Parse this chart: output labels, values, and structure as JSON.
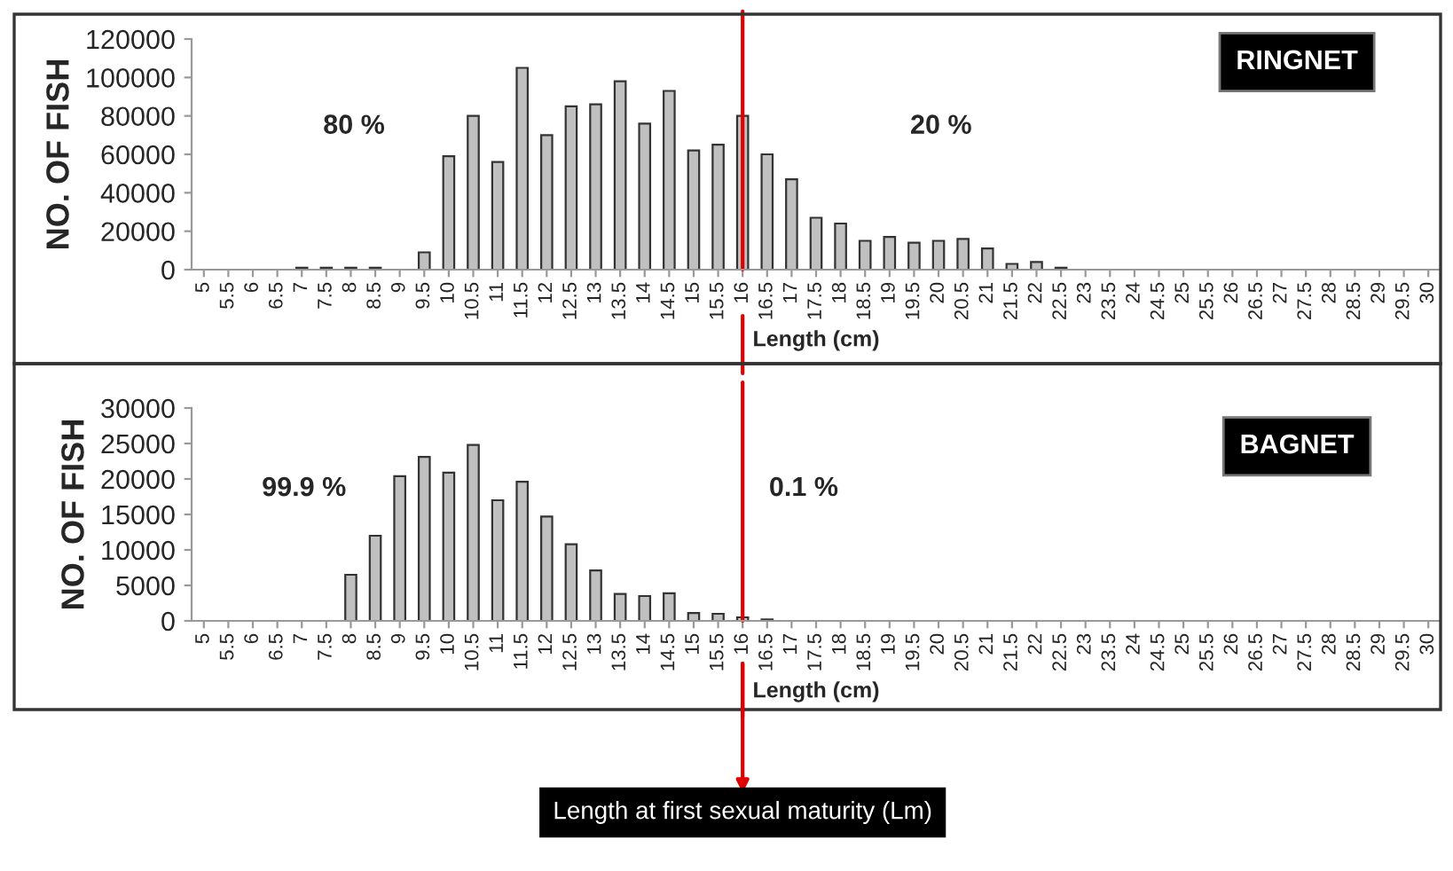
{
  "chart_data": [
    {
      "type": "bar",
      "xlabel": "Length (cm)",
      "ylabel": "NO. OF FISH",
      "categories": [
        "5",
        "5.5",
        "6",
        "6.5",
        "7",
        "7.5",
        "8",
        "8.5",
        "9",
        "9.5",
        "10",
        "10.5",
        "11",
        "11.5",
        "12",
        "12.5",
        "13",
        "13.5",
        "14",
        "14.5",
        "15",
        "15.5",
        "16",
        "16.5",
        "17",
        "17.5",
        "18",
        "18.5",
        "19",
        "19.5",
        "20",
        "20.5",
        "21",
        "21.5",
        "22",
        "22.5",
        "23",
        "23.5",
        "24",
        "24.5",
        "25",
        "25.5",
        "26",
        "26.5",
        "27",
        "27.5",
        "28",
        "28.5",
        "29",
        "29.5",
        "30"
      ],
      "values": [
        0,
        0,
        0,
        0,
        1000,
        1000,
        1000,
        1000,
        0,
        9000,
        59000,
        80000,
        56000,
        105000,
        70000,
        85000,
        86000,
        98000,
        76000,
        93000,
        62000,
        65000,
        80000,
        60000,
        47000,
        27000,
        24000,
        15000,
        17000,
        14000,
        15000,
        16000,
        11000,
        3000,
        4000,
        1000,
        0,
        0,
        0,
        0,
        0,
        0,
        0,
        0,
        0,
        0,
        0,
        0,
        0,
        0,
        0
      ],
      "color": "#c0c0c0",
      "ylim": [
        0,
        120000
      ],
      "yticks": [
        0,
        20000,
        40000,
        60000,
        80000,
        100000,
        120000
      ],
      "grid": false,
      "annotations": [
        "80 %",
        "20 %",
        "RINGNET"
      ],
      "ref_lines": [
        {
          "axis": "x",
          "value": "16",
          "color": "#e00000"
        }
      ]
    },
    {
      "type": "bar",
      "xlabel": "Length (cm)",
      "ylabel": "NO. OF FISH",
      "categories": [
        "5",
        "5.5",
        "6",
        "6.5",
        "7",
        "7.5",
        "8",
        "8.5",
        "9",
        "9.5",
        "10",
        "10.5",
        "11",
        "11.5",
        "12",
        "12.5",
        "13",
        "13.5",
        "14",
        "14.5",
        "15",
        "15.5",
        "16",
        "16.5",
        "17",
        "17.5",
        "18",
        "18.5",
        "19",
        "19.5",
        "20",
        "20.5",
        "21",
        "21.5",
        "22",
        "22.5",
        "23",
        "23.5",
        "24",
        "24.5",
        "25",
        "25.5",
        "26",
        "26.5",
        "27",
        "27.5",
        "28",
        "28.5",
        "29",
        "29.5",
        "30"
      ],
      "values": [
        0,
        0,
        0,
        0,
        0,
        0,
        6500,
        12000,
        20400,
        23100,
        20900,
        24800,
        17000,
        19600,
        14700,
        10800,
        7100,
        3800,
        3500,
        3900,
        1100,
        1000,
        500,
        200,
        0,
        0,
        0,
        0,
        0,
        0,
        0,
        0,
        0,
        0,
        0,
        0,
        0,
        0,
        0,
        0,
        0,
        0,
        0,
        0,
        0,
        0,
        0,
        0,
        0,
        0,
        0
      ],
      "color": "#c0c0c0",
      "ylim": [
        0,
        30000
      ],
      "yticks": [
        0,
        5000,
        10000,
        15000,
        20000,
        25000,
        30000
      ],
      "grid": false,
      "annotations": [
        "99.9 %",
        "0.1 %",
        "BAGNET",
        "Length at first sexual maturity (Lm)"
      ],
      "ref_lines": [
        {
          "axis": "x",
          "value": "16",
          "color": "#e00000"
        }
      ]
    }
  ]
}
